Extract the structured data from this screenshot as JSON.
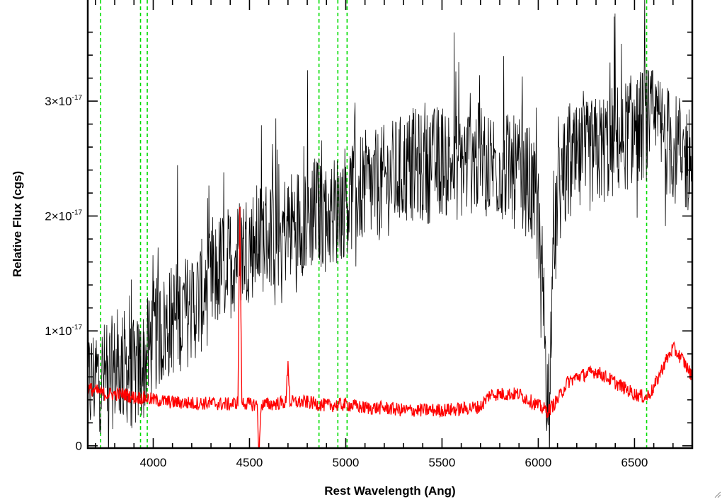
{
  "chart_data": {
    "type": "line",
    "title": "",
    "xlabel": "Rest Wavelength (Ang)",
    "ylabel": "Relative Flux (cgs)",
    "xlim": [
      3660,
      6800
    ],
    "ylim": [
      -0.02,
      3.88
    ],
    "y_unit_exponent": "-17",
    "x_tick_labels": [
      "4000",
      "4500",
      "5000",
      "5500",
      "6000",
      "6500"
    ],
    "x_ticks": [
      4000,
      4500,
      5000,
      5500,
      6000,
      6500
    ],
    "y_ticks": [
      {
        "value": 0,
        "label": "0",
        "sup": ""
      },
      {
        "value": 1,
        "label": "1×10",
        "sup": "-17"
      },
      {
        "value": 2,
        "label": "2×10",
        "sup": "-17"
      },
      {
        "value": 3,
        "label": "3×10",
        "sup": "-17"
      }
    ],
    "grid": false,
    "reference_lines": {
      "color": "#00dd00",
      "style": "dashed",
      "x": [
        3727,
        3934,
        3969,
        4861,
        4959,
        5007,
        6563
      ]
    },
    "series": [
      {
        "color": "#000000",
        "description_values": "observed spectrum (noisy)",
        "x": [
          3660,
          3700,
          3750,
          3800,
          3850,
          3900,
          3950,
          4000,
          4050,
          4100,
          4150,
          4200,
          4250,
          4300,
          4350,
          4400,
          4450,
          4500,
          4550,
          4600,
          4650,
          4700,
          4750,
          4800,
          4850,
          4900,
          4950,
          5000,
          5050,
          5100,
          5150,
          5200,
          5250,
          5300,
          5350,
          5400,
          5450,
          5500,
          5550,
          5600,
          5650,
          5700,
          5750,
          5800,
          5850,
          5900,
          5950,
          6000,
          6020,
          6040,
          6050,
          6060,
          6080,
          6100,
          6150,
          6200,
          6250,
          6300,
          6350,
          6400,
          6450,
          6500,
          6550,
          6600,
          6650,
          6700,
          6750,
          6800
        ],
        "y": [
          0.5,
          0.6,
          0.6,
          0.65,
          0.7,
          0.6,
          0.7,
          0.95,
          1.0,
          1.1,
          1.15,
          1.2,
          1.3,
          1.4,
          1.55,
          1.6,
          1.7,
          1.75,
          1.8,
          1.85,
          1.85,
          1.9,
          1.95,
          2.0,
          2.05,
          2.0,
          2.05,
          2.15,
          2.2,
          2.25,
          2.25,
          2.3,
          2.35,
          2.4,
          2.45,
          2.4,
          2.45,
          2.5,
          2.45,
          2.45,
          2.5,
          2.5,
          2.45,
          2.45,
          2.4,
          2.35,
          2.3,
          2.0,
          1.5,
          0.8,
          0.2,
          0.8,
          1.5,
          2.2,
          2.4,
          2.45,
          2.5,
          2.55,
          2.6,
          2.65,
          2.7,
          2.75,
          2.8,
          2.8,
          2.7,
          2.6,
          2.5,
          2.5
        ],
        "noise_amplitude": 0.5
      },
      {
        "color": "#ff0000",
        "description_values": "error / sky spectrum",
        "x": [
          3660,
          3700,
          3750,
          3800,
          3850,
          3900,
          3950,
          4000,
          4100,
          4200,
          4300,
          4400,
          4440,
          4450,
          4460,
          4500,
          4540,
          4550,
          4560,
          4600,
          4690,
          4700,
          4710,
          4800,
          4900,
          5000,
          5100,
          5200,
          5300,
          5400,
          5500,
          5600,
          5700,
          5750,
          5800,
          5900,
          6000,
          6050,
          6100,
          6150,
          6200,
          6300,
          6400,
          6500,
          6560,
          6600,
          6650,
          6700,
          6750,
          6800
        ],
        "y": [
          0.5,
          0.48,
          0.45,
          0.45,
          0.45,
          0.42,
          0.42,
          0.4,
          0.38,
          0.37,
          0.37,
          0.36,
          0.38,
          2.1,
          0.38,
          0.36,
          0.36,
          -0.1,
          0.36,
          0.36,
          0.38,
          0.75,
          0.38,
          0.38,
          0.35,
          0.36,
          0.33,
          0.33,
          0.31,
          0.31,
          0.31,
          0.32,
          0.34,
          0.45,
          0.45,
          0.45,
          0.35,
          0.3,
          0.4,
          0.55,
          0.6,
          0.65,
          0.55,
          0.45,
          0.42,
          0.5,
          0.7,
          0.85,
          0.75,
          0.6
        ],
        "noise_amplitude": 0.06
      }
    ]
  }
}
